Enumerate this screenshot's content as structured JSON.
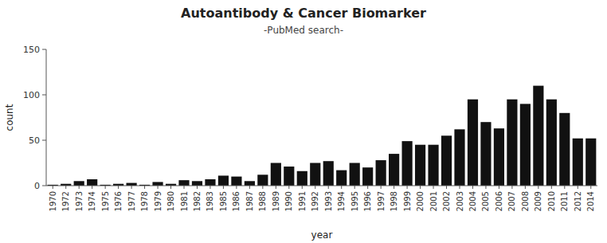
{
  "chart_data": {
    "type": "bar",
    "title": "Autoantibody & Cancer Biomarker",
    "subtitle": "-PubMed search-",
    "x_label": "year",
    "y_label": "count",
    "categories": [
      "1970",
      "1972",
      "1973",
      "1974",
      "1975",
      "1976",
      "1977",
      "1978",
      "1979",
      "1980",
      "1981",
      "1982",
      "1983",
      "1985",
      "1986",
      "1987",
      "1988",
      "1989",
      "1990",
      "1991",
      "1992",
      "1993",
      "1994",
      "1995",
      "1996",
      "1997",
      "1998",
      "1999",
      "2000",
      "2001",
      "2002",
      "2003",
      "2004",
      "2005",
      "2006",
      "2007",
      "2008",
      "2009",
      "2010",
      "2011",
      "2012",
      "2014"
    ],
    "values": [
      1,
      2,
      5,
      7,
      1,
      2,
      3,
      1,
      4,
      2,
      6,
      5,
      7,
      11,
      10,
      5,
      12,
      25,
      21,
      16,
      25,
      27,
      17,
      25,
      20,
      28,
      35,
      49,
      45,
      45,
      55,
      62,
      95,
      70,
      63,
      95,
      90,
      110,
      95,
      80,
      52,
      52
    ],
    "color": "#111111",
    "ylim": [
      0,
      150
    ],
    "yticks": [
      0,
      50,
      100,
      150
    ],
    "grid": false
  }
}
